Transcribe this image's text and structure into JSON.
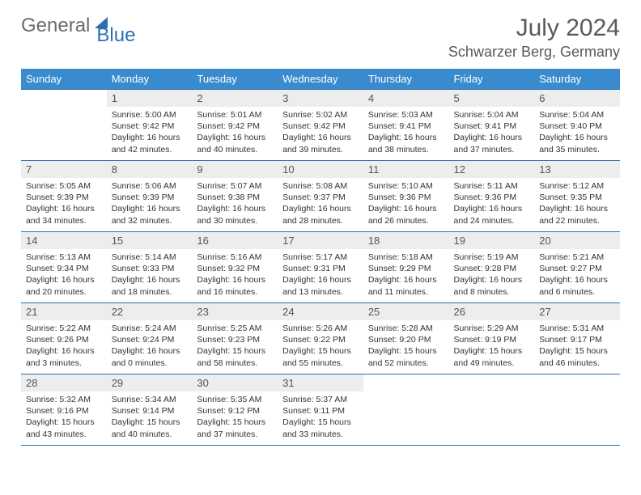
{
  "brand": {
    "word1": "General",
    "word2": "Blue"
  },
  "title": "July 2024",
  "location": "Schwarzer Berg, Germany",
  "colors": {
    "header_bg": "#3a8bce",
    "border": "#2f6fb0",
    "daynum_bg": "#eceded",
    "text": "#333333",
    "title": "#595959"
  },
  "dow": [
    "Sunday",
    "Monday",
    "Tuesday",
    "Wednesday",
    "Thursday",
    "Friday",
    "Saturday"
  ],
  "weeks": [
    [
      {
        "n": "",
        "empty": true
      },
      {
        "n": "1",
        "sr": "5:00 AM",
        "ss": "9:42 PM",
        "d": "16 hours and 42 minutes."
      },
      {
        "n": "2",
        "sr": "5:01 AM",
        "ss": "9:42 PM",
        "d": "16 hours and 40 minutes."
      },
      {
        "n": "3",
        "sr": "5:02 AM",
        "ss": "9:42 PM",
        "d": "16 hours and 39 minutes."
      },
      {
        "n": "4",
        "sr": "5:03 AM",
        "ss": "9:41 PM",
        "d": "16 hours and 38 minutes."
      },
      {
        "n": "5",
        "sr": "5:04 AM",
        "ss": "9:41 PM",
        "d": "16 hours and 37 minutes."
      },
      {
        "n": "6",
        "sr": "5:04 AM",
        "ss": "9:40 PM",
        "d": "16 hours and 35 minutes."
      }
    ],
    [
      {
        "n": "7",
        "sr": "5:05 AM",
        "ss": "9:39 PM",
        "d": "16 hours and 34 minutes."
      },
      {
        "n": "8",
        "sr": "5:06 AM",
        "ss": "9:39 PM",
        "d": "16 hours and 32 minutes."
      },
      {
        "n": "9",
        "sr": "5:07 AM",
        "ss": "9:38 PM",
        "d": "16 hours and 30 minutes."
      },
      {
        "n": "10",
        "sr": "5:08 AM",
        "ss": "9:37 PM",
        "d": "16 hours and 28 minutes."
      },
      {
        "n": "11",
        "sr": "5:10 AM",
        "ss": "9:36 PM",
        "d": "16 hours and 26 minutes."
      },
      {
        "n": "12",
        "sr": "5:11 AM",
        "ss": "9:36 PM",
        "d": "16 hours and 24 minutes."
      },
      {
        "n": "13",
        "sr": "5:12 AM",
        "ss": "9:35 PM",
        "d": "16 hours and 22 minutes."
      }
    ],
    [
      {
        "n": "14",
        "sr": "5:13 AM",
        "ss": "9:34 PM",
        "d": "16 hours and 20 minutes."
      },
      {
        "n": "15",
        "sr": "5:14 AM",
        "ss": "9:33 PM",
        "d": "16 hours and 18 minutes."
      },
      {
        "n": "16",
        "sr": "5:16 AM",
        "ss": "9:32 PM",
        "d": "16 hours and 16 minutes."
      },
      {
        "n": "17",
        "sr": "5:17 AM",
        "ss": "9:31 PM",
        "d": "16 hours and 13 minutes."
      },
      {
        "n": "18",
        "sr": "5:18 AM",
        "ss": "9:29 PM",
        "d": "16 hours and 11 minutes."
      },
      {
        "n": "19",
        "sr": "5:19 AM",
        "ss": "9:28 PM",
        "d": "16 hours and 8 minutes."
      },
      {
        "n": "20",
        "sr": "5:21 AM",
        "ss": "9:27 PM",
        "d": "16 hours and 6 minutes."
      }
    ],
    [
      {
        "n": "21",
        "sr": "5:22 AM",
        "ss": "9:26 PM",
        "d": "16 hours and 3 minutes."
      },
      {
        "n": "22",
        "sr": "5:24 AM",
        "ss": "9:24 PM",
        "d": "16 hours and 0 minutes."
      },
      {
        "n": "23",
        "sr": "5:25 AM",
        "ss": "9:23 PM",
        "d": "15 hours and 58 minutes."
      },
      {
        "n": "24",
        "sr": "5:26 AM",
        "ss": "9:22 PM",
        "d": "15 hours and 55 minutes."
      },
      {
        "n": "25",
        "sr": "5:28 AM",
        "ss": "9:20 PM",
        "d": "15 hours and 52 minutes."
      },
      {
        "n": "26",
        "sr": "5:29 AM",
        "ss": "9:19 PM",
        "d": "15 hours and 49 minutes."
      },
      {
        "n": "27",
        "sr": "5:31 AM",
        "ss": "9:17 PM",
        "d": "15 hours and 46 minutes."
      }
    ],
    [
      {
        "n": "28",
        "sr": "5:32 AM",
        "ss": "9:16 PM",
        "d": "15 hours and 43 minutes."
      },
      {
        "n": "29",
        "sr": "5:34 AM",
        "ss": "9:14 PM",
        "d": "15 hours and 40 minutes."
      },
      {
        "n": "30",
        "sr": "5:35 AM",
        "ss": "9:12 PM",
        "d": "15 hours and 37 minutes."
      },
      {
        "n": "31",
        "sr": "5:37 AM",
        "ss": "9:11 PM",
        "d": "15 hours and 33 minutes."
      },
      {
        "n": "",
        "empty": true
      },
      {
        "n": "",
        "empty": true
      },
      {
        "n": "",
        "empty": true
      }
    ]
  ],
  "labels": {
    "sunrise": "Sunrise:",
    "sunset": "Sunset:",
    "daylight": "Daylight:"
  }
}
